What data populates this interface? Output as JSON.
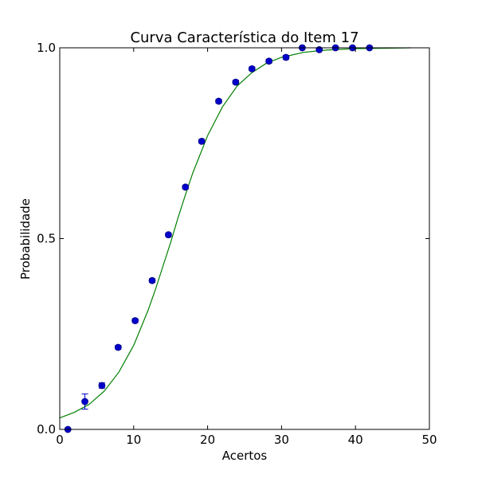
{
  "chart_data": {
    "type": "scatter",
    "title": "Curva Característica do Item 17",
    "xlabel": "Acertos",
    "ylabel": "Probabilidade",
    "xlim": [
      0,
      50
    ],
    "ylim": [
      0.0,
      1.0
    ],
    "xticks": [
      0,
      10,
      20,
      30,
      40,
      50
    ],
    "xtick_labels": [
      "0",
      "10",
      "20",
      "30",
      "40",
      "50"
    ],
    "yticks": [
      0.0,
      0.5,
      1.0
    ],
    "ytick_labels": [
      "0.0",
      "0.5",
      "1.0"
    ],
    "grid": false,
    "colors": {
      "points": "#0000cc",
      "point_edge": "#000080",
      "curve": "#008000",
      "errorbar": "#0000cc",
      "axes": "#000000"
    },
    "series": [
      {
        "kind": "points_with_errorbars",
        "x": [
          1.1,
          3.4,
          5.7,
          7.9,
          10.2,
          12.5,
          14.7,
          17.0,
          19.2,
          21.5,
          23.8,
          26.0,
          28.3,
          30.6,
          32.8,
          35.1,
          37.3,
          39.6,
          41.9
        ],
        "y": [
          0.0,
          0.073,
          0.115,
          0.215,
          0.285,
          0.39,
          0.51,
          0.635,
          0.755,
          0.86,
          0.91,
          0.945,
          0.965,
          0.975,
          1.0,
          0.995,
          1.0,
          1.0,
          1.0
        ],
        "yerr": [
          0.0,
          0.02,
          0.007,
          0.005,
          0.005,
          0.005,
          0.005,
          0.005,
          0.005,
          0.005,
          0.005,
          0.005,
          0.005,
          0.005,
          0.002,
          0.003,
          0.002,
          0.002,
          0.002
        ]
      },
      {
        "kind": "fitted_curve",
        "model": "logistic",
        "x": [
          0,
          2,
          4,
          6,
          8,
          10,
          12,
          13,
          14,
          15,
          16,
          17,
          18,
          20,
          22,
          24,
          26,
          28,
          30,
          33,
          36,
          40,
          44,
          47.5
        ],
        "y": [
          0.03,
          0.045,
          0.066,
          0.1,
          0.15,
          0.22,
          0.315,
          0.37,
          0.43,
          0.49,
          0.555,
          0.615,
          0.672,
          0.77,
          0.845,
          0.9,
          0.935,
          0.96,
          0.975,
          0.988,
          0.994,
          0.998,
          0.999,
          1.0
        ]
      }
    ]
  }
}
